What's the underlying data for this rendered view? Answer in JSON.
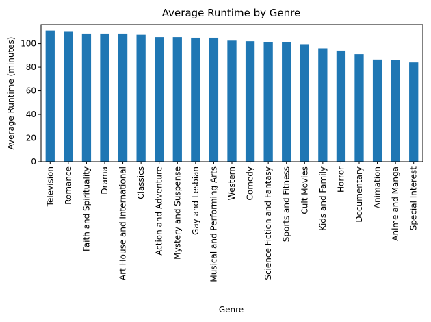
{
  "chart_data": {
    "type": "bar",
    "title": "Average Runtime by Genre",
    "xlabel": "Genre",
    "ylabel": "Average Runtime (minutes)",
    "ylim": [
      0,
      116
    ],
    "yticks": [
      0,
      20,
      40,
      60,
      80,
      100
    ],
    "grid": false,
    "legend": "none",
    "bar_color": "#1f77b4",
    "categories": [
      "Television",
      "Romance",
      "Faith and Spirituality",
      "Drama",
      "Art House and International",
      "Classics",
      "Action and Adventure",
      "Mystery and Suspense",
      "Gay and Lesbian",
      "Musical and Performing Arts",
      "Western",
      "Comedy",
      "Science Fiction and Fantasy",
      "Sports and Fitness",
      "Cult Movies",
      "Kids and Family",
      "Horror",
      "Documentary",
      "Animation",
      "Anime and Manga",
      "Special Interest"
    ],
    "values": [
      111,
      110.5,
      108.5,
      108.5,
      108.5,
      107.5,
      105.5,
      105.5,
      105,
      105,
      102.5,
      102,
      101.5,
      101.5,
      99.5,
      96,
      94,
      91,
      86.5,
      86,
      84
    ]
  }
}
